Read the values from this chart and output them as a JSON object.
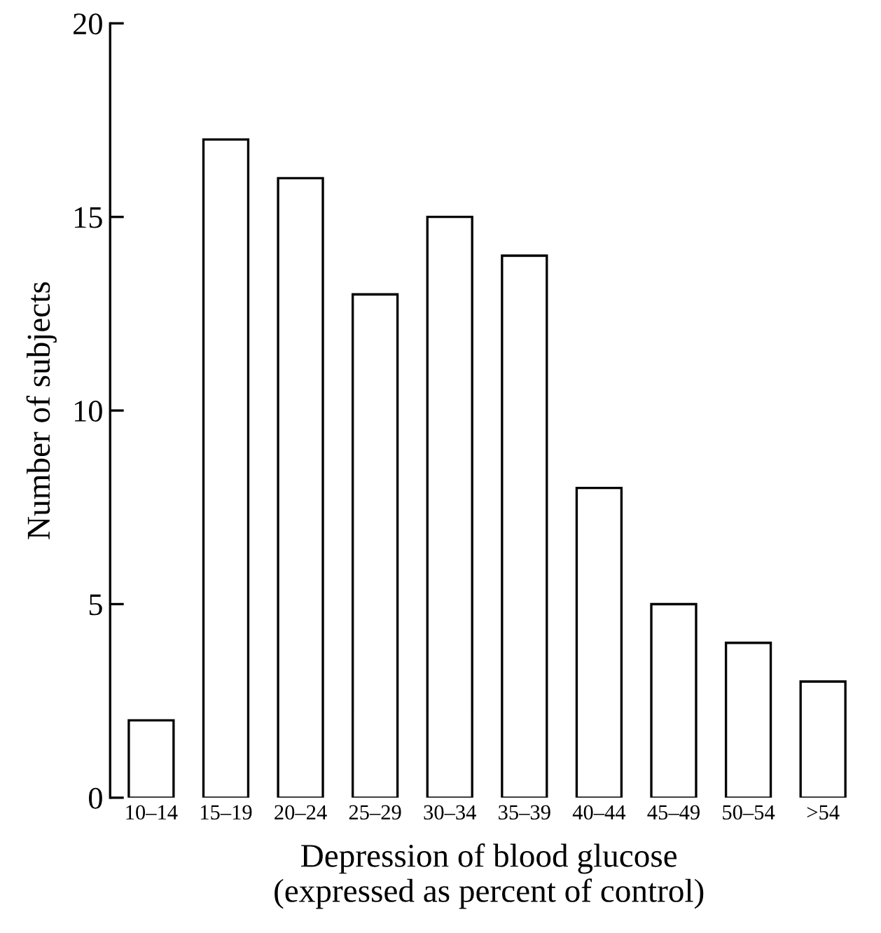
{
  "chart_data": {
    "type": "bar",
    "xlabel": "Depression of blood glucose\n(expressed as percent of control)",
    "ylabel": "Number of subjects",
    "categories": [
      "10–14",
      "15–19",
      "20–24",
      "25–29",
      "30–34",
      "35–39",
      "40–44",
      "45–49",
      "50–54",
      ">54"
    ],
    "values": [
      2,
      17,
      16,
      13,
      15,
      14,
      8,
      5,
      4,
      3
    ],
    "color": "#ffffff",
    "ylim": [
      0,
      20
    ],
    "yticks": [
      0,
      5,
      10,
      15,
      20
    ],
    "grid": false,
    "legend": false
  }
}
